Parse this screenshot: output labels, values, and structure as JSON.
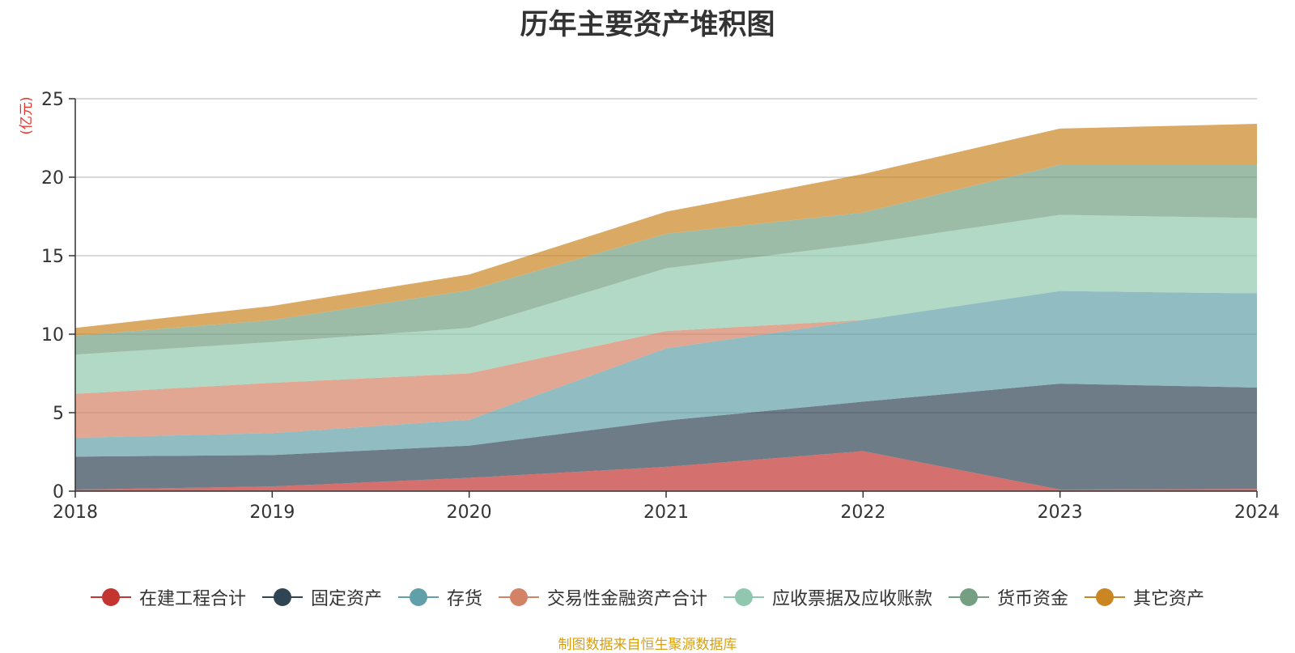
{
  "chart_data": {
    "type": "area",
    "stacked": true,
    "title": "历年主要资产堆积图",
    "ylabel": "亿元",
    "ylim": [
      0,
      25
    ],
    "yticks": [
      0,
      5,
      10,
      15,
      20,
      25
    ],
    "x": [
      "2018",
      "2019",
      "2020",
      "2021",
      "2022",
      "2023",
      "2024"
    ],
    "series": [
      {
        "name": "在建工程合计",
        "color": "#c23531",
        "values": [
          0.1,
          0.3,
          0.85,
          1.55,
          2.55,
          0.1,
          0.15
        ]
      },
      {
        "name": "固定资产",
        "color": "#2f4554",
        "values": [
          2.1,
          2.0,
          2.05,
          2.95,
          3.15,
          6.75,
          6.45
        ]
      },
      {
        "name": "存货",
        "color": "#61a0a8",
        "values": [
          1.2,
          1.4,
          1.65,
          4.6,
          5.2,
          5.9,
          6.0
        ]
      },
      {
        "name": "交易性金融资产合计",
        "color": "#d48265",
        "values": [
          2.8,
          3.2,
          2.95,
          1.1,
          0.0,
          0.0,
          0.0
        ]
      },
      {
        "name": "应收票据及应收账款",
        "color": "#91c7ae",
        "values": [
          2.5,
          2.6,
          2.9,
          4.0,
          4.85,
          4.85,
          4.8
        ]
      },
      {
        "name": "货币资金",
        "color": "#749f83",
        "values": [
          1.2,
          1.4,
          2.4,
          2.2,
          2.0,
          3.2,
          3.4
        ]
      },
      {
        "name": "其它资产",
        "color": "#ca8622",
        "values": [
          0.5,
          0.9,
          1.0,
          1.4,
          2.45,
          2.3,
          2.6
        ]
      }
    ]
  },
  "footer": {
    "source_note": "制图数据来自恒生聚源数据库"
  }
}
